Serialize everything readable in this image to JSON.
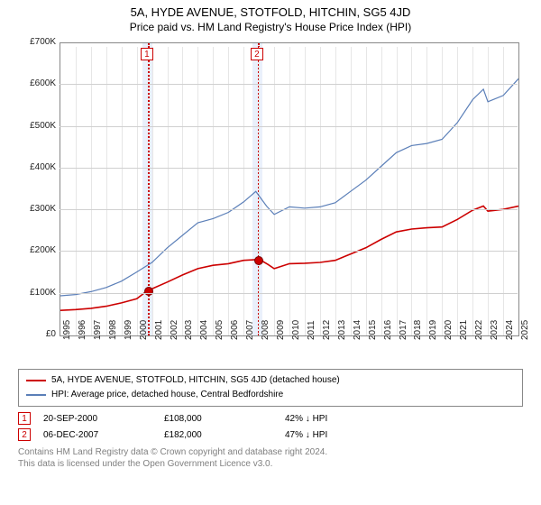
{
  "title": "5A, HYDE AVENUE, STOTFOLD, HITCHIN, SG5 4JD",
  "subtitle": "Price paid vs. HM Land Registry's House Price Index (HPI)",
  "chart": {
    "type": "line",
    "ylim": [
      0,
      700000
    ],
    "ytick_step": 100000,
    "yticks_labels": [
      "£0",
      "£100K",
      "£200K",
      "£300K",
      "£400K",
      "£500K",
      "£600K",
      "£700K"
    ],
    "xlim": [
      1995,
      2025
    ],
    "xtick_step": 1,
    "background_color": "#ffffff",
    "grid_color": "#d0d0d0",
    "band_color": "#eaf0fb",
    "marker_border": "#cc0000",
    "point_fill": "#cc0000",
    "series": [
      {
        "name": "price_paid",
        "label": "5A, HYDE AVENUE, STOTFOLD, HITCHIN, SG5 4JD (detached house)",
        "color": "#cc0000",
        "line_width": 1.6,
        "data": [
          [
            1995,
            60000
          ],
          [
            1996,
            62000
          ],
          [
            1997,
            65000
          ],
          [
            1998,
            70000
          ],
          [
            1999,
            78000
          ],
          [
            2000,
            88000
          ],
          [
            2000.72,
            108000
          ],
          [
            2001,
            112000
          ],
          [
            2002,
            128000
          ],
          [
            2003,
            145000
          ],
          [
            2004,
            160000
          ],
          [
            2005,
            168000
          ],
          [
            2006,
            172000
          ],
          [
            2007,
            180000
          ],
          [
            2007.93,
            182000
          ],
          [
            2008,
            183000
          ],
          [
            2008.6,
            170000
          ],
          [
            2009,
            160000
          ],
          [
            2010,
            172000
          ],
          [
            2011,
            173000
          ],
          [
            2012,
            175000
          ],
          [
            2013,
            180000
          ],
          [
            2014,
            195000
          ],
          [
            2015,
            210000
          ],
          [
            2016,
            230000
          ],
          [
            2017,
            248000
          ],
          [
            2018,
            255000
          ],
          [
            2019,
            258000
          ],
          [
            2020,
            260000
          ],
          [
            2021,
            278000
          ],
          [
            2022,
            300000
          ],
          [
            2022.7,
            310000
          ],
          [
            2023,
            298000
          ],
          [
            2024,
            302000
          ],
          [
            2025,
            310000
          ]
        ]
      },
      {
        "name": "hpi",
        "label": "HPI: Average price, detached house, Central Bedfordshire",
        "color": "#5b7fb8",
        "line_width": 1.2,
        "data": [
          [
            1995,
            95000
          ],
          [
            1996,
            98000
          ],
          [
            1997,
            105000
          ],
          [
            1998,
            115000
          ],
          [
            1999,
            130000
          ],
          [
            2000,
            152000
          ],
          [
            2001,
            175000
          ],
          [
            2002,
            210000
          ],
          [
            2003,
            240000
          ],
          [
            2004,
            270000
          ],
          [
            2005,
            280000
          ],
          [
            2006,
            295000
          ],
          [
            2007,
            320000
          ],
          [
            2007.8,
            345000
          ],
          [
            2008.5,
            310000
          ],
          [
            2009,
            290000
          ],
          [
            2010,
            308000
          ],
          [
            2011,
            305000
          ],
          [
            2012,
            308000
          ],
          [
            2013,
            318000
          ],
          [
            2014,
            345000
          ],
          [
            2015,
            372000
          ],
          [
            2016,
            405000
          ],
          [
            2017,
            438000
          ],
          [
            2018,
            455000
          ],
          [
            2019,
            460000
          ],
          [
            2020,
            470000
          ],
          [
            2021,
            510000
          ],
          [
            2022,
            565000
          ],
          [
            2022.7,
            590000
          ],
          [
            2023,
            560000
          ],
          [
            2024,
            575000
          ],
          [
            2025,
            615000
          ]
        ]
      }
    ],
    "markers": [
      {
        "id": "1",
        "x": 2000.72,
        "y": 108000,
        "band": [
          2000.4,
          2001.0
        ]
      },
      {
        "id": "2",
        "x": 2007.93,
        "y": 182000,
        "band": [
          2007.6,
          2008.25
        ]
      }
    ]
  },
  "legend": {
    "rows": [
      {
        "color": "#cc0000",
        "label_key": "chart.series.0.label"
      },
      {
        "color": "#5b7fb8",
        "label_key": "chart.series.1.label"
      }
    ]
  },
  "events": [
    {
      "id": "1",
      "date": "20-SEP-2000",
      "price": "£108,000",
      "delta": "42% ↓ HPI"
    },
    {
      "id": "2",
      "date": "06-DEC-2007",
      "price": "£182,000",
      "delta": "47% ↓ HPI"
    }
  ],
  "footer": {
    "line1": "Contains HM Land Registry data © Crown copyright and database right 2024.",
    "line2": "This data is licensed under the Open Government Licence v3.0."
  },
  "typography": {
    "title_fontsize": 13,
    "subtitle_fontsize": 12,
    "tick_fontsize": 10,
    "legend_fontsize": 10
  }
}
